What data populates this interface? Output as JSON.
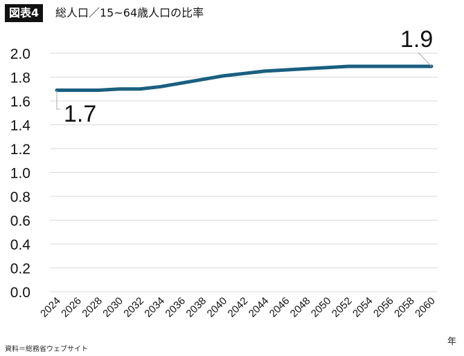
{
  "header": {
    "badge": "図表4",
    "title": "総人口／15~64歳人口の比率"
  },
  "footer": {
    "source": "資料＝総務省ウェブサイト"
  },
  "chart_data": {
    "type": "line",
    "title": "総人口／15~64歳人口の比率",
    "xlabel": "年",
    "ylabel": "",
    "ylim": [
      0,
      2.0
    ],
    "yticks": [
      "0.0",
      "0.2",
      "0.4",
      "0.6",
      "0.8",
      "1.0",
      "1.2",
      "1.4",
      "1.6",
      "1.8",
      "2.0"
    ],
    "categories": [
      "2024",
      "2026",
      "2028",
      "2030",
      "2032",
      "2034",
      "2036",
      "2038",
      "2040",
      "2042",
      "2044",
      "2046",
      "2048",
      "2050",
      "2052",
      "2054",
      "2056",
      "2058",
      "2060"
    ],
    "values": [
      1.69,
      1.69,
      1.69,
      1.7,
      1.7,
      1.72,
      1.75,
      1.78,
      1.81,
      1.83,
      1.85,
      1.86,
      1.87,
      1.88,
      1.89,
      1.89,
      1.89,
      1.89,
      1.89
    ],
    "annotations": [
      {
        "x": "2024",
        "text": "1.7"
      },
      {
        "x": "2060",
        "text": "1.9"
      }
    ],
    "grid": true,
    "colors": {
      "line": "#1a5f80",
      "grid": "#d9d9d9"
    }
  }
}
